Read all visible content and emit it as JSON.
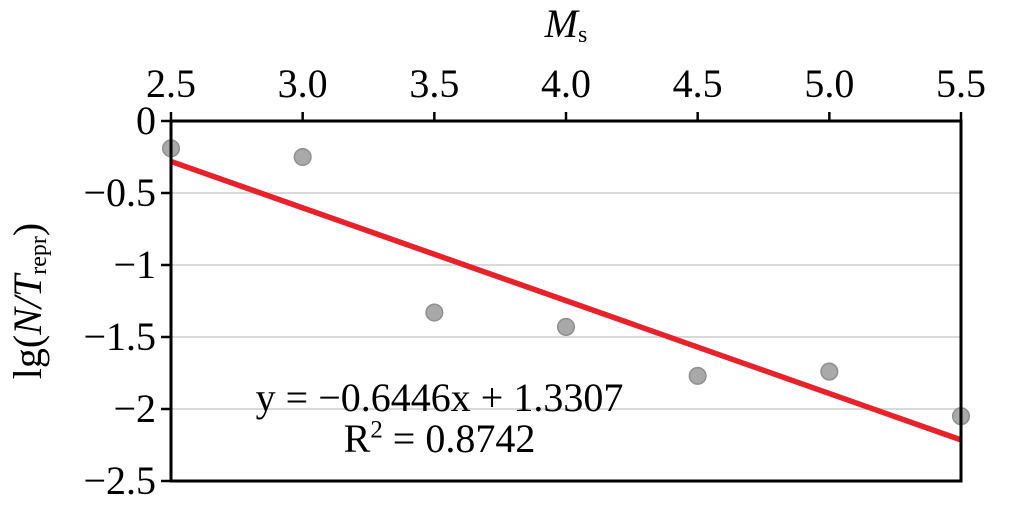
{
  "chart_data": {
    "type": "scatter",
    "xlabel": "Ms",
    "ylabel": "lg(N/T repr)",
    "xlabel_main": "M",
    "xlabel_sub": "s",
    "ylabel_parts": {
      "pre": "lg(",
      "italic": "N/T",
      "sub": "repr",
      "post": ")"
    },
    "xlim": [
      2.5,
      5.5
    ],
    "ylim": [
      -2.5,
      0
    ],
    "xtick_values": [
      2.5,
      3.0,
      3.5,
      4.0,
      4.5,
      5.0,
      5.5
    ],
    "xtick_labels": [
      "2.5",
      "3.0",
      "3.5",
      "4.0",
      "4.5",
      "5.0",
      "5.5"
    ],
    "ytick_values": [
      0,
      -0.5,
      -1,
      -1.5,
      -2,
      -2.5
    ],
    "ytick_labels": [
      "0",
      "−0.5",
      "−1",
      "−1.5",
      "−2",
      "−2.5"
    ],
    "gridline_values": [
      -0.5,
      -1,
      -1.5,
      -2
    ],
    "grid": "horizontal",
    "legend": "none",
    "points": {
      "x": [
        2.5,
        3.0,
        3.5,
        4.0,
        4.5,
        5.0,
        5.5
      ],
      "y": [
        -0.19,
        -0.25,
        -1.33,
        -1.43,
        -1.77,
        -1.74,
        -2.05
      ]
    },
    "trendline": {
      "slope": -0.6446,
      "intercept": 1.3307,
      "x_start": 2.5,
      "x_end": 5.5
    },
    "annotation": {
      "line1": "y = −0.6446x + 1.3307",
      "line2_r": "R",
      "line2_sup": "2",
      "line2_rest": " = 0.8742",
      "r_squared": 0.8742
    },
    "colors": {
      "trend": "#e8222a",
      "point_fill": "#a9a9a9",
      "point_stroke": "#8f8f8f",
      "gridline": "#d9d9d9",
      "axis": "#000000",
      "background": "#ffffff"
    }
  }
}
